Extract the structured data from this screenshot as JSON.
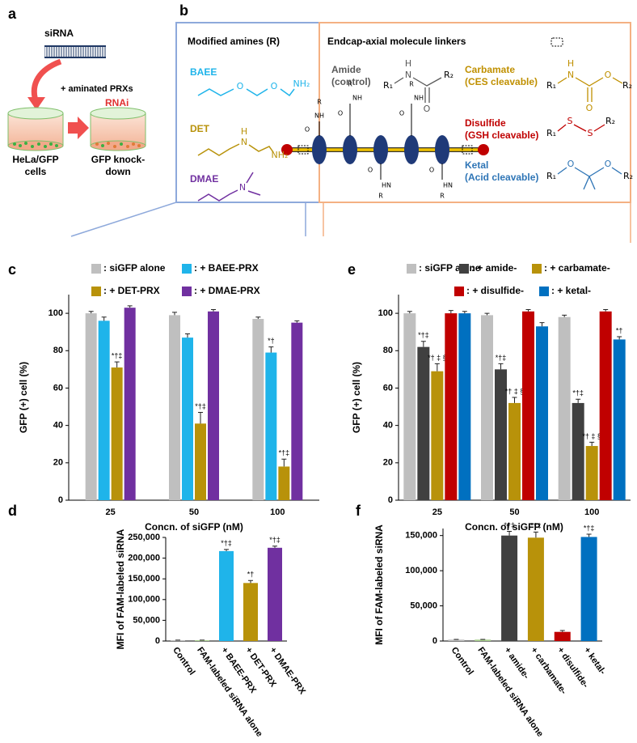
{
  "panel_a": {
    "label": "a",
    "sirna": "siRNA",
    "reagent": "+ aminated PRXs",
    "rnai": "RNAi",
    "cells_before": [
      "HeLa/GFP",
      "cells"
    ],
    "cells_after": [
      "GFP knock-",
      "down"
    ]
  },
  "panel_b": {
    "label": "b",
    "amines_title": "Modified amines (R)",
    "amines": [
      {
        "name": "BAEE",
        "color": "#1fb4ea",
        "atoms": [
          "O",
          "O",
          "NH₂"
        ]
      },
      {
        "name": "DET",
        "color": "#b8920a",
        "atoms": [
          "H",
          "N",
          "NH₂"
        ]
      },
      {
        "name": "DMAE",
        "color": "#7030a0",
        "atoms": [
          "N"
        ]
      }
    ],
    "linkers_title": "Endcap-axial molecule linkers",
    "linkers": [
      {
        "name": "Amide",
        "note": "(control)",
        "color": "#595959",
        "atoms": [
          "H",
          "N",
          "R₁",
          "R₂",
          "O"
        ]
      },
      {
        "name": "Carbamate",
        "note": "(CES cleavable)",
        "color": "#c09000",
        "atoms": [
          "H",
          "N",
          "R₁",
          "O",
          "O",
          "R₂"
        ]
      },
      {
        "name": "Disulfide",
        "note": "(GSH cleavable)",
        "color": "#c00000",
        "atoms": [
          "R₁",
          "S",
          "S",
          "R₂"
        ]
      },
      {
        "name": "Ketal",
        "note": "(Acid cleavable)",
        "color": "#2e75b6",
        "atoms": [
          "R₁",
          "O",
          "O",
          "R₂"
        ]
      }
    ],
    "rotaxane": [
      "R",
      "NH",
      "O",
      "R",
      "NH",
      "O",
      "R",
      "NH",
      "O",
      "O",
      "HN",
      "R",
      "O",
      "HN",
      "R"
    ]
  },
  "chart_data": [
    {
      "type": "bar",
      "panel": "c",
      "categories": [
        "25",
        "50",
        "100"
      ],
      "xlabel": "Concn. of siGFP (nM)",
      "ylabel": "GFP (+) cell (%)",
      "ylim": [
        0,
        110
      ],
      "yticks": [
        0,
        20,
        40,
        60,
        80,
        100
      ],
      "series": [
        {
          "name": ": siGFP alone",
          "color": "#bfbfbf",
          "values": [
            100,
            99,
            97
          ],
          "errors": [
            1,
            1.5,
            1
          ],
          "significance": [
            null,
            null,
            null
          ]
        },
        {
          "name": ": + BAEE-PRX",
          "color": "#1fb4ea",
          "values": [
            96,
            87,
            79
          ],
          "errors": [
            2,
            2,
            3
          ],
          "significance": [
            null,
            null,
            "*†"
          ]
        },
        {
          "name": ": + DET-PRX",
          "color": "#b8920a",
          "values": [
            71,
            41,
            18
          ],
          "errors": [
            3,
            6,
            4
          ],
          "significance": [
            "*†‡",
            "*†‡",
            "*†‡"
          ]
        },
        {
          "name": ": + DMAE-PRX",
          "color": "#7030a0",
          "values": [
            103,
            101,
            95
          ],
          "errors": [
            1,
            1,
            1
          ],
          "significance": [
            null,
            null,
            null
          ]
        }
      ]
    },
    {
      "type": "bar",
      "panel": "d",
      "categories": [
        "Control",
        "FAM-labeled siRNA alone",
        "+ BAEE-PRX",
        "+ DET-PRX",
        "+ DMAE-PRX"
      ],
      "ylabel": "MFI of FAM-labeled siRNA",
      "ylim": [
        0,
        250000
      ],
      "yticks": [
        0,
        {
          "value": 50000,
          "label": "50,000"
        },
        {
          "value": 100000,
          "label": "100,000"
        },
        {
          "value": 150000,
          "label": "150,000"
        },
        {
          "value": 200000,
          "label": "200,000"
        },
        {
          "value": 250000,
          "label": "250,000"
        }
      ],
      "values": [
        2000,
        2000,
        217000,
        140000,
        225000
      ],
      "errors": [
        300,
        300,
        4000,
        6000,
        4000
      ],
      "colors": [
        "#bfbfbf",
        "#a9d18e",
        "#1fb4ea",
        "#b8920a",
        "#7030a0"
      ],
      "significance": [
        null,
        null,
        "*†‡",
        "*†",
        "*†‡"
      ]
    },
    {
      "type": "bar",
      "panel": "e",
      "categories": [
        "25",
        "50",
        "100"
      ],
      "xlabel": "Concn. of siGFP (nM)",
      "ylabel": "GFP (+) cell (%)",
      "ylim": [
        0,
        110
      ],
      "yticks": [
        0,
        20,
        40,
        60,
        80,
        100
      ],
      "series": [
        {
          "name": ": siGFP alone",
          "color": "#bfbfbf",
          "values": [
            100,
            99,
            98
          ],
          "errors": [
            1,
            1,
            1
          ],
          "significance": [
            null,
            null,
            null
          ]
        },
        {
          "name": ": + amide-",
          "color": "#404040",
          "values": [
            82,
            70,
            52
          ],
          "errors": [
            3,
            3,
            2
          ],
          "significance": [
            "*†‡",
            "*†‡",
            "*†‡"
          ]
        },
        {
          "name": ": + carbamate-",
          "color": "#b8920a",
          "values": [
            69,
            52,
            29
          ],
          "errors": [
            4,
            3,
            2
          ],
          "significance": [
            "*† ‡ §",
            "*† ‡ §",
            "*† ‡ §"
          ]
        },
        {
          "name": ": + disulfide-",
          "color": "#c00000",
          "values": [
            100,
            101,
            101
          ],
          "errors": [
            1.5,
            1,
            1
          ],
          "significance": [
            null,
            null,
            null
          ]
        },
        {
          "name": ": + ketal-",
          "color": "#0070c0",
          "values": [
            100,
            93,
            86
          ],
          "errors": [
            1,
            2,
            1.5
          ],
          "significance": [
            null,
            null,
            "*†"
          ]
        }
      ]
    },
    {
      "type": "bar",
      "panel": "f",
      "categories": [
        "Control",
        "FAM-labeled siRNA alone",
        "+ amide-",
        "+ carbamate-",
        "+ disulfide-",
        "+ ketal-"
      ],
      "ylabel": "MFI of FAM-labeled siRNA",
      "ylim": [
        0,
        160000
      ],
      "yticks": [
        0,
        {
          "value": 50000,
          "label": "50,000"
        },
        {
          "value": 100000,
          "label": "100,000"
        },
        {
          "value": 150000,
          "label": "150,000"
        }
      ],
      "values": [
        2000,
        2000,
        150000,
        147000,
        13000,
        148000
      ],
      "errors": [
        300,
        300,
        6000,
        8000,
        2000,
        4000
      ],
      "colors": [
        "#bfbfbf",
        "#a9d18e",
        "#404040",
        "#b8920a",
        "#c00000",
        "#0070c0"
      ],
      "significance": [
        null,
        null,
        "*†‡",
        "*†‡",
        null,
        "*†‡"
      ]
    }
  ]
}
